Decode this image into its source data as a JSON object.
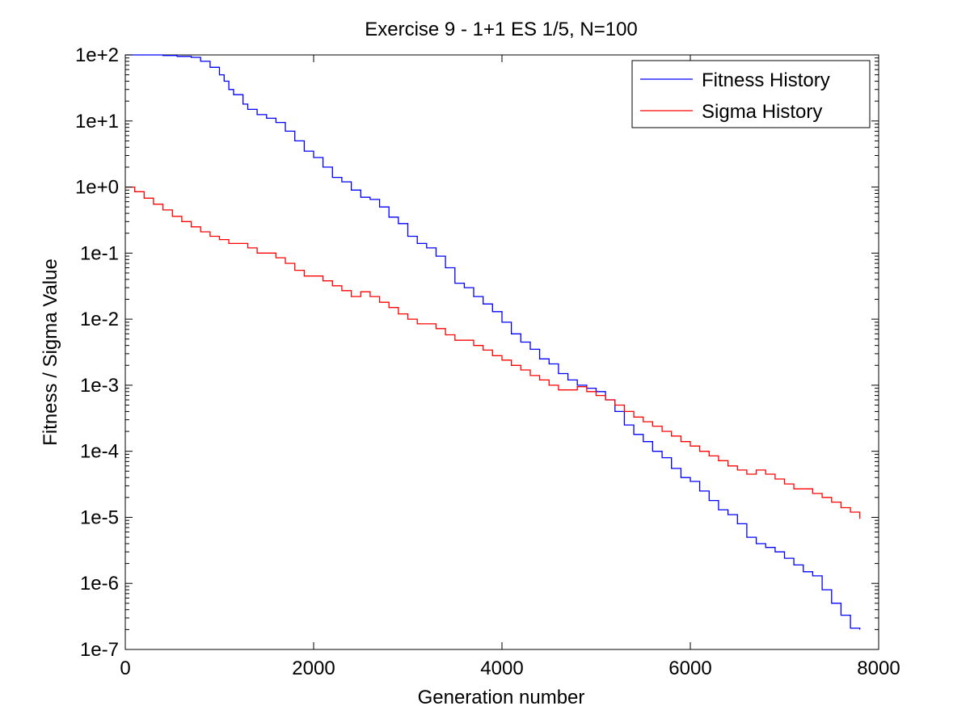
{
  "chart_data": {
    "type": "line",
    "title": "Exercise 9 - 1+1 ES 1/5, N=100",
    "xlabel": "Generation number",
    "ylabel": "Fitness / Sigma Value",
    "xlim": [
      0,
      8000
    ],
    "ylim": [
      1e-07,
      100
    ],
    "yscale": "log",
    "grid": false,
    "legend_position": "top-right",
    "x_ticks": [
      0,
      2000,
      4000,
      6000,
      8000
    ],
    "x_tick_labels": [
      "0",
      "2000",
      "4000",
      "6000",
      "8000"
    ],
    "y_ticks": [
      1e-07,
      1e-06,
      1e-05,
      0.0001,
      0.001,
      0.01,
      0.1,
      1,
      10,
      100
    ],
    "y_tick_labels": [
      "1e-7",
      "1e-6",
      "1e-5",
      "1e-4",
      "1e-3",
      "1e-2",
      "1e-1",
      "1e+0",
      "1e+1",
      "1e+2"
    ],
    "series": [
      {
        "name": "Fitness History",
        "color": "#0000ff",
        "x": [
          0,
          200,
          400,
          550,
          700,
          800,
          900,
          1000,
          1050,
          1100,
          1150,
          1250,
          1300,
          1400,
          1500,
          1600,
          1700,
          1800,
          1900,
          2000,
          2100,
          2200,
          2300,
          2400,
          2500,
          2600,
          2700,
          2800,
          2900,
          3000,
          3100,
          3200,
          3300,
          3400,
          3500,
          3600,
          3700,
          3800,
          3900,
          4000,
          4100,
          4200,
          4300,
          4400,
          4500,
          4600,
          4700,
          4800,
          4900,
          5000,
          5100,
          5200,
          5300,
          5400,
          5500,
          5600,
          5700,
          5800,
          5900,
          6000,
          6100,
          6200,
          6300,
          6400,
          6500,
          6600,
          6700,
          6800,
          6900,
          7000,
          7100,
          7200,
          7300,
          7400,
          7500,
          7600,
          7700,
          7800
        ],
        "values": [
          100,
          100,
          98,
          95,
          92,
          80,
          65,
          50,
          40,
          30,
          25,
          18,
          15,
          12.5,
          11,
          9.5,
          7,
          5,
          3.5,
          2.8,
          2.0,
          1.4,
          1.2,
          0.9,
          0.7,
          0.65,
          0.5,
          0.35,
          0.28,
          0.18,
          0.14,
          0.12,
          0.09,
          0.06,
          0.035,
          0.03,
          0.022,
          0.017,
          0.013,
          0.009,
          0.006,
          0.0045,
          0.0035,
          0.0025,
          0.0021,
          0.0015,
          0.0012,
          0.001,
          0.0009,
          0.0008,
          0.0006,
          0.0004,
          0.00025,
          0.00018,
          0.00014,
          0.0001,
          8e-05,
          5.5e-05,
          4e-05,
          3.5e-05,
          2.5e-05,
          1.8e-05,
          1.3e-05,
          1.1e-05,
          8e-06,
          5e-06,
          4e-06,
          3.5e-06,
          3e-06,
          2.4e-06,
          1.9e-06,
          1.5e-06,
          1.3e-06,
          8e-07,
          5e-07,
          3.3e-07,
          2.1e-07,
          2e-07
        ]
      },
      {
        "name": "Sigma History",
        "color": "#ff0000",
        "x": [
          0,
          100,
          200,
          300,
          400,
          500,
          600,
          700,
          800,
          900,
          1000,
          1100,
          1200,
          1300,
          1400,
          1500,
          1600,
          1700,
          1800,
          1900,
          2000,
          2100,
          2200,
          2300,
          2400,
          2500,
          2600,
          2700,
          2800,
          2900,
          3000,
          3100,
          3200,
          3300,
          3400,
          3500,
          3600,
          3700,
          3800,
          3900,
          4000,
          4100,
          4200,
          4300,
          4400,
          4500,
          4600,
          4700,
          4800,
          4900,
          5000,
          5100,
          5200,
          5300,
          5400,
          5500,
          5600,
          5700,
          5800,
          5900,
          6000,
          6100,
          6200,
          6300,
          6400,
          6500,
          6600,
          6700,
          6800,
          6900,
          7000,
          7100,
          7200,
          7300,
          7400,
          7500,
          7600,
          7700,
          7800
        ],
        "values": [
          1.0,
          0.85,
          0.68,
          0.55,
          0.45,
          0.36,
          0.3,
          0.25,
          0.21,
          0.18,
          0.16,
          0.14,
          0.14,
          0.12,
          0.1,
          0.1,
          0.085,
          0.07,
          0.055,
          0.045,
          0.045,
          0.038,
          0.032,
          0.027,
          0.022,
          0.026,
          0.022,
          0.018,
          0.015,
          0.012,
          0.01,
          0.0085,
          0.0085,
          0.0072,
          0.0058,
          0.0048,
          0.0048,
          0.004,
          0.0034,
          0.0028,
          0.0024,
          0.002,
          0.0017,
          0.0014,
          0.0012,
          0.001,
          0.00085,
          0.00085,
          0.00095,
          0.0008,
          0.0007,
          0.0006,
          0.0005,
          0.0004,
          0.00033,
          0.00028,
          0.00024,
          0.0002,
          0.00017,
          0.00014,
          0.00012,
          0.0001,
          8.5e-05,
          7.2e-05,
          6e-05,
          5.2e-05,
          4.5e-05,
          5.2e-05,
          4.5e-05,
          3.8e-05,
          3.2e-05,
          2.7e-05,
          2.7e-05,
          2.3e-05,
          2e-05,
          1.7e-05,
          1.4e-05,
          1.2e-05,
          9.5e-06
        ]
      }
    ]
  }
}
